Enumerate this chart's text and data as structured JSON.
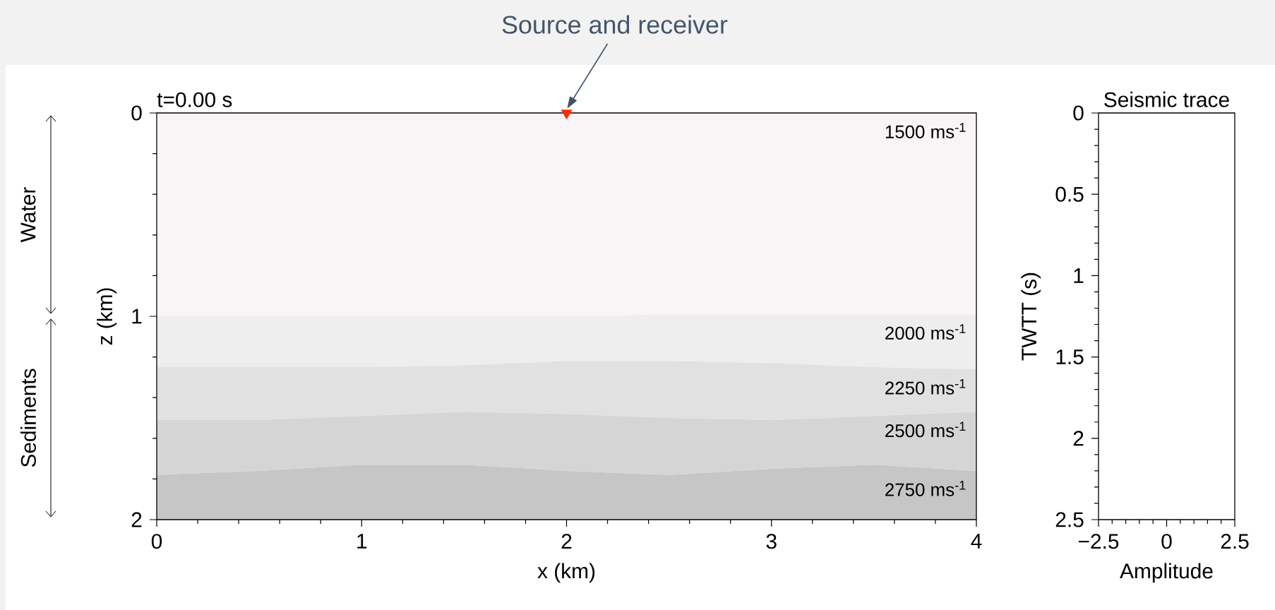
{
  "chart_data": [
    {
      "type": "area",
      "stacked": true,
      "title": "t=0.00 s",
      "xlabel": "x (km)",
      "ylabel": "z (km)",
      "x": [
        0,
        0.5,
        1,
        1.5,
        2,
        2.5,
        3,
        3.5,
        4
      ],
      "series": [
        {
          "name": "1500 ms$^{-1}$",
          "color": "#f9f5f7",
          "values": [
            1.0,
            1.0,
            1.0,
            1.0,
            1.0,
            0.99,
            0.99,
            0.99,
            0.99
          ]
        },
        {
          "name": "2000 ms$^{-1}$",
          "color": "#efeeef",
          "values": [
            0.25,
            0.25,
            0.25,
            0.24,
            0.22,
            0.23,
            0.24,
            0.26,
            0.27
          ]
        },
        {
          "name": "2250 ms$^{-1}$",
          "color": "#e2e1e2",
          "values": [
            0.26,
            0.26,
            0.24,
            0.23,
            0.26,
            0.28,
            0.28,
            0.24,
            0.21
          ]
        },
        {
          "name": "2500 ms$^{-1}$",
          "color": "#d5d5d5",
          "values": [
            0.27,
            0.25,
            0.24,
            0.26,
            0.28,
            0.28,
            0.24,
            0.24,
            0.29
          ]
        },
        {
          "name": "2750 ms$^{-1}$",
          "color": "#c6c6c6",
          "values": [
            0.22,
            0.24,
            0.27,
            0.27,
            0.24,
            0.22,
            0.25,
            0.27,
            0.24
          ]
        },
        {
          "type": "scatter",
          "x": [
            2
          ],
          "values": [
            0
          ],
          "color": "#ff2a00",
          "marker": "triangle"
        }
      ],
      "xlim": [
        0,
        4
      ],
      "xticks": [
        0,
        1,
        2,
        3,
        4
      ],
      "ylim": [
        2,
        0
      ],
      "yticks": [
        0,
        1,
        2
      ],
      "annotations": [
        {
          "text": "Source and receiver",
          "x": 2,
          "y": 0
        },
        "Water",
        "Sediments"
      ]
    },
    {
      "type": "line",
      "title": "Seismic trace",
      "xlabel": "Amplitude",
      "ylabel": "TWTT (s)",
      "xlim": [
        -2.5,
        2.5
      ],
      "xticks": [
        {
          "value": -2.5,
          "label": "−2.5"
        },
        0,
        2.5
      ],
      "ylim": [
        2.5,
        0
      ],
      "yticks": [
        0,
        0.5,
        1,
        1.5,
        2,
        2.5
      ]
    }
  ]
}
